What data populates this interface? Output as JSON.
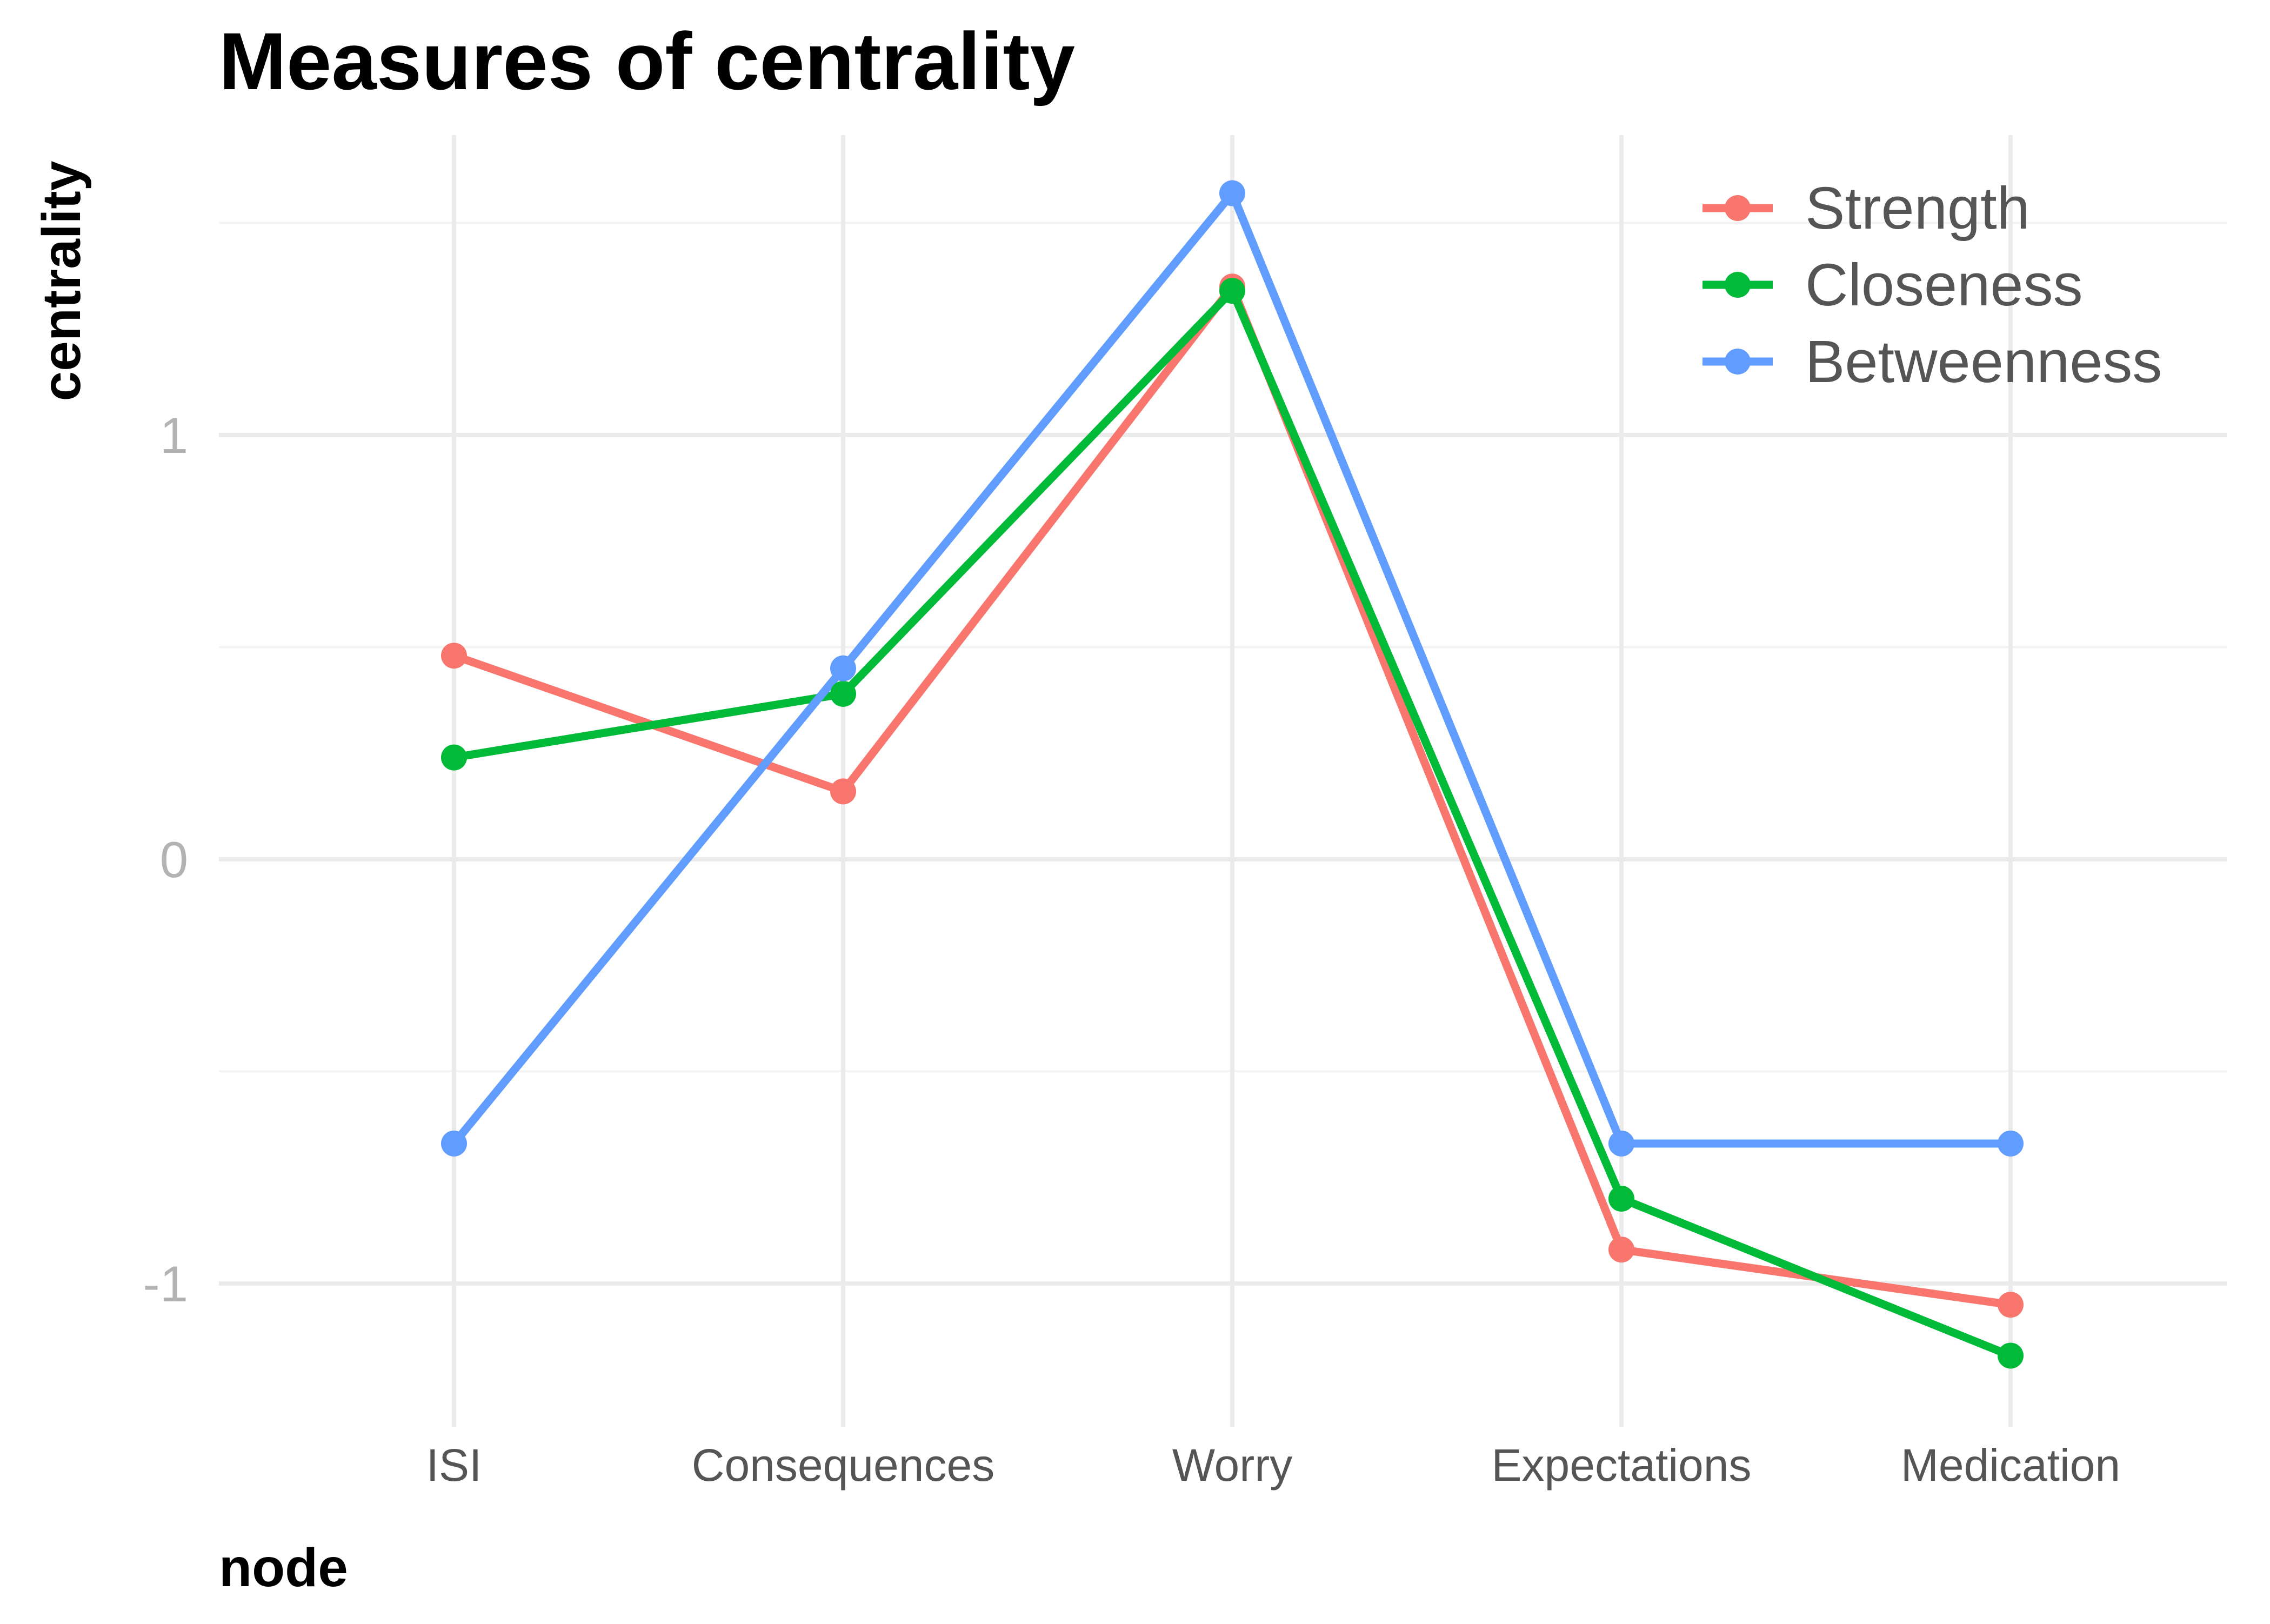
{
  "chart_data": {
    "type": "line",
    "title": "Measures of centrality",
    "xlabel": "node",
    "ylabel": "centrality",
    "categories": [
      "ISI",
      "Consequences",
      "Worry",
      "Expectations",
      "Medication"
    ],
    "ylim": [
      -1.3,
      1.75
    ],
    "yticks": [
      {
        "value": -1,
        "label": "-1"
      },
      {
        "value": 0,
        "label": "0"
      },
      {
        "value": 1,
        "label": "1"
      }
    ],
    "grid": true,
    "legend_position": "top-right",
    "series": [
      {
        "name": "Strength",
        "color": "#F8766D",
        "values": [
          0.48,
          0.16,
          1.35,
          -0.92,
          -1.05
        ]
      },
      {
        "name": "Closeness",
        "color": "#00BA38",
        "values": [
          0.24,
          0.39,
          1.34,
          -0.8,
          -1.17
        ]
      },
      {
        "name": "Betweenness",
        "color": "#619CFF",
        "values": [
          -0.67,
          0.45,
          1.57,
          -0.67,
          -0.67
        ]
      }
    ]
  }
}
